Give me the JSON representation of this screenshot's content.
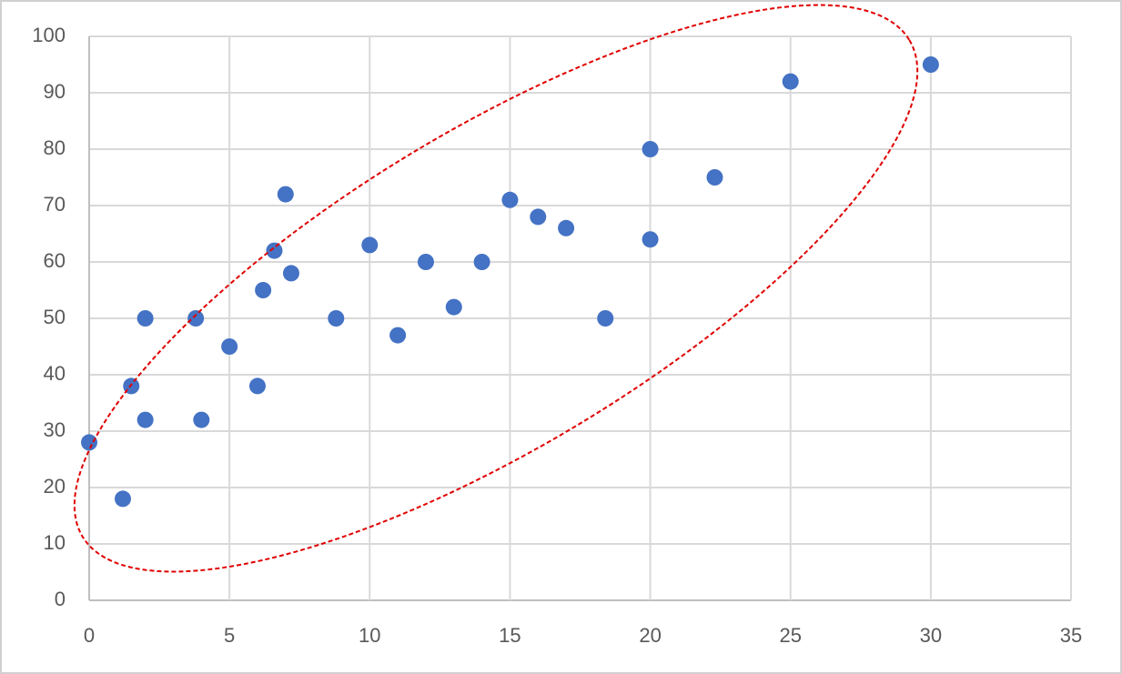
{
  "chart_data": {
    "type": "scatter",
    "x": [
      0,
      1.2,
      1.5,
      2,
      2,
      3.8,
      4,
      5,
      6,
      6.2,
      6.6,
      7,
      7.2,
      8.8,
      10,
      11,
      12,
      13,
      14,
      15,
      16,
      17,
      18.4,
      20,
      20,
      22.3,
      25,
      30
    ],
    "values": [
      28,
      18,
      38,
      32,
      50,
      50,
      32,
      45,
      38,
      55,
      62,
      72,
      58,
      50,
      63,
      47,
      60,
      52,
      60,
      71,
      68,
      66,
      50,
      80,
      64,
      75,
      92,
      95
    ],
    "color": "#4472c4",
    "xlim": [
      0,
      35
    ],
    "xticks": [
      0,
      5,
      10,
      15,
      20,
      25,
      30,
      35
    ],
    "ylim": [
      0,
      100
    ],
    "yticks": [
      0,
      10,
      20,
      30,
      40,
      50,
      60,
      70,
      80,
      90,
      100
    ],
    "grid": true
  }
}
